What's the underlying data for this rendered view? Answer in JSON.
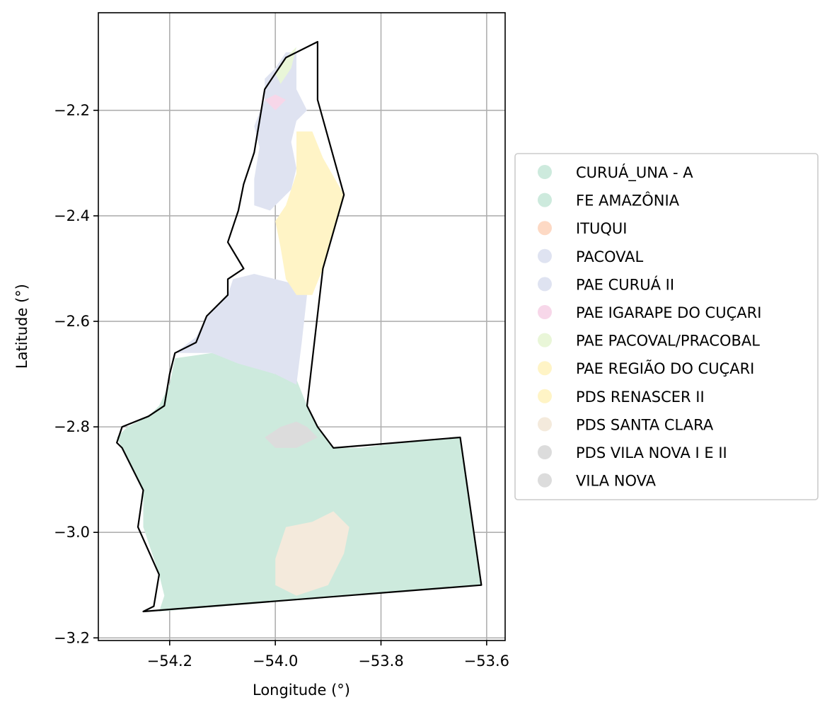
{
  "chart_data": {
    "type": "map",
    "xlabel": "Longitude (°)",
    "ylabel": "Latitude (°)",
    "xlim": [
      -54.335,
      -53.565
    ],
    "ylim": [
      -3.205,
      -2.015
    ],
    "xticks": [
      {
        "value": -54.2,
        "label": "−54.2"
      },
      {
        "value": -54.0,
        "label": "−54.0"
      },
      {
        "value": -53.8,
        "label": "−53.8"
      },
      {
        "value": -53.6,
        "label": "−53.6"
      }
    ],
    "yticks": [
      {
        "value": -2.2,
        "label": "−2.2"
      },
      {
        "value": -2.4,
        "label": "−2.4"
      },
      {
        "value": -2.6,
        "label": "−2.6"
      },
      {
        "value": -2.8,
        "label": "−2.8"
      },
      {
        "value": -3.0,
        "label": "−3.0"
      },
      {
        "value": -3.2,
        "label": "−3.2"
      }
    ],
    "grid": true,
    "legend": {
      "placement": "right",
      "entries": [
        {
          "label": "CURUÁ_UNA - A",
          "color": "#cdeadd"
        },
        {
          "label": "FE AMAZÔNIA",
          "color": "#cdeadd"
        },
        {
          "label": "ITUQUI",
          "color": "#fdd9c4"
        },
        {
          "label": "PACOVAL",
          "color": "#dfe3f1"
        },
        {
          "label": "PAE CURUÁ II",
          "color": "#dfe3f1"
        },
        {
          "label": "PAE IGARAPE DO CUÇARI",
          "color": "#f7d7e9"
        },
        {
          "label": "PAE PACOVAL/PRACOBAL",
          "color": "#e9f6d8"
        },
        {
          "label": "PAE REGIÃO DO CUÇARI",
          "color": "#fff4c6"
        },
        {
          "label": "PDS RENASCER II",
          "color": "#fff4c6"
        },
        {
          "label": "PDS SANTA CLARA",
          "color": "#f4eadc"
        },
        {
          "label": "PDS VILA NOVA I E II",
          "color": "#dcdcdc"
        },
        {
          "label": "VILA NOVA",
          "color": "#dcdcdc"
        }
      ]
    },
    "regions": [
      {
        "name": "FE AMAZÔNIA",
        "color": "#cdeadd",
        "coords": [
          [
            -54.19,
            -2.67
          ],
          [
            -54.12,
            -2.66
          ],
          [
            -54.06,
            -2.68
          ],
          [
            -54.0,
            -2.7
          ],
          [
            -53.96,
            -2.71
          ],
          [
            -53.94,
            -2.76
          ],
          [
            -53.92,
            -2.8
          ],
          [
            -53.89,
            -2.84
          ],
          [
            -53.84,
            -2.84
          ],
          [
            -53.76,
            -2.83
          ],
          [
            -53.65,
            -2.82
          ],
          [
            -53.61,
            -3.1
          ],
          [
            -54.22,
            -3.15
          ],
          [
            -54.21,
            -3.12
          ],
          [
            -54.22,
            -3.08
          ],
          [
            -54.25,
            -2.99
          ],
          [
            -54.25,
            -2.92
          ],
          [
            -54.27,
            -2.88
          ],
          [
            -54.29,
            -2.84
          ],
          [
            -54.3,
            -2.82
          ],
          [
            -54.28,
            -2.8
          ],
          [
            -54.24,
            -2.78
          ],
          [
            -54.22,
            -2.76
          ],
          [
            -54.2,
            -2.72
          ]
        ]
      },
      {
        "name": "PDS SANTA CLARA",
        "color": "#f4eadc",
        "coords": [
          [
            -53.98,
            -2.99
          ],
          [
            -53.93,
            -2.98
          ],
          [
            -53.89,
            -2.96
          ],
          [
            -53.86,
            -2.99
          ],
          [
            -53.87,
            -3.04
          ],
          [
            -53.9,
            -3.1
          ],
          [
            -53.96,
            -3.12
          ],
          [
            -54.0,
            -3.1
          ],
          [
            -54.0,
            -3.05
          ]
        ]
      },
      {
        "name": "PDS VILA NOVA I E II",
        "color": "#dcdcdc",
        "coords": [
          [
            -54.02,
            -2.82
          ],
          [
            -53.99,
            -2.8
          ],
          [
            -53.96,
            -2.79
          ],
          [
            -53.94,
            -2.8
          ],
          [
            -53.92,
            -2.82
          ],
          [
            -53.96,
            -2.84
          ],
          [
            -54.0,
            -2.84
          ]
        ]
      },
      {
        "name": "PAE CURUÁ II",
        "color": "#dfe3f1",
        "coords": [
          [
            -54.19,
            -2.66
          ],
          [
            -54.15,
            -2.63
          ],
          [
            -54.13,
            -2.59
          ],
          [
            -54.09,
            -2.55
          ],
          [
            -54.08,
            -2.52
          ],
          [
            -54.04,
            -2.51
          ],
          [
            -53.96,
            -2.53
          ],
          [
            -53.94,
            -2.55
          ],
          [
            -53.95,
            -2.64
          ],
          [
            -53.96,
            -2.72
          ],
          [
            -54.0,
            -2.7
          ],
          [
            -54.07,
            -2.68
          ],
          [
            -54.12,
            -2.66
          ]
        ]
      },
      {
        "name": "PACOVAL",
        "color": "#dfe3f1",
        "coords": [
          [
            -54.02,
            -2.14
          ],
          [
            -54.0,
            -2.12
          ],
          [
            -53.98,
            -2.09
          ],
          [
            -53.96,
            -2.09
          ],
          [
            -53.96,
            -2.16
          ],
          [
            -53.94,
            -2.2
          ],
          [
            -53.96,
            -2.22
          ],
          [
            -53.97,
            -2.26
          ],
          [
            -53.96,
            -2.31
          ],
          [
            -53.97,
            -2.35
          ],
          [
            -54.01,
            -2.39
          ],
          [
            -54.04,
            -2.38
          ],
          [
            -54.04,
            -2.33
          ],
          [
            -54.03,
            -2.27
          ],
          [
            -54.04,
            -2.23
          ],
          [
            -54.02,
            -2.18
          ]
        ]
      },
      {
        "name": "PAE REGIÃO DO CUÇARI",
        "color": "#fff4c6",
        "coords": [
          [
            -53.96,
            -2.24
          ],
          [
            -53.93,
            -2.24
          ],
          [
            -53.91,
            -2.29
          ],
          [
            -53.87,
            -2.36
          ],
          [
            -53.91,
            -2.5
          ],
          [
            -53.93,
            -2.55
          ],
          [
            -53.96,
            -2.55
          ],
          [
            -53.98,
            -2.52
          ],
          [
            -53.99,
            -2.46
          ],
          [
            -54.0,
            -2.41
          ],
          [
            -53.98,
            -2.38
          ],
          [
            -53.96,
            -2.32
          ]
        ]
      },
      {
        "name": "PAE PACOVAL/PRACOBAL",
        "color": "#e9f6d8",
        "coords": [
          [
            -54.0,
            -2.13
          ],
          [
            -53.98,
            -2.1
          ],
          [
            -53.96,
            -2.08
          ],
          [
            -53.97,
            -2.12
          ],
          [
            -53.99,
            -2.15
          ]
        ]
      },
      {
        "name": "PAE IGARAPE DO CUÇARI",
        "color": "#f7d7e9",
        "coords": [
          [
            -54.02,
            -2.18
          ],
          [
            -54.0,
            -2.17
          ],
          [
            -53.98,
            -2.18
          ],
          [
            -54.0,
            -2.2
          ]
        ]
      }
    ],
    "boundary": [
      [
        -53.92,
        -2.07
      ],
      [
        -53.92,
        -2.18
      ],
      [
        -53.87,
        -2.36
      ],
      [
        -53.91,
        -2.5
      ],
      [
        -53.94,
        -2.76
      ],
      [
        -53.92,
        -2.8
      ],
      [
        -53.89,
        -2.84
      ],
      [
        -53.65,
        -2.82
      ],
      [
        -53.61,
        -3.1
      ],
      [
        -54.25,
        -3.15
      ],
      [
        -54.23,
        -3.14
      ],
      [
        -54.22,
        -3.08
      ],
      [
        -54.26,
        -2.99
      ],
      [
        -54.25,
        -2.92
      ],
      [
        -54.29,
        -2.84
      ],
      [
        -54.3,
        -2.83
      ],
      [
        -54.29,
        -2.8
      ],
      [
        -54.24,
        -2.78
      ],
      [
        -54.21,
        -2.76
      ],
      [
        -54.2,
        -2.7
      ],
      [
        -54.19,
        -2.66
      ],
      [
        -54.15,
        -2.64
      ],
      [
        -54.13,
        -2.59
      ],
      [
        -54.09,
        -2.55
      ],
      [
        -54.09,
        -2.52
      ],
      [
        -54.06,
        -2.5
      ],
      [
        -54.09,
        -2.45
      ],
      [
        -54.07,
        -2.39
      ],
      [
        -54.06,
        -2.34
      ],
      [
        -54.04,
        -2.28
      ],
      [
        -54.03,
        -2.22
      ],
      [
        -54.02,
        -2.16
      ],
      [
        -53.98,
        -2.1
      ]
    ]
  }
}
